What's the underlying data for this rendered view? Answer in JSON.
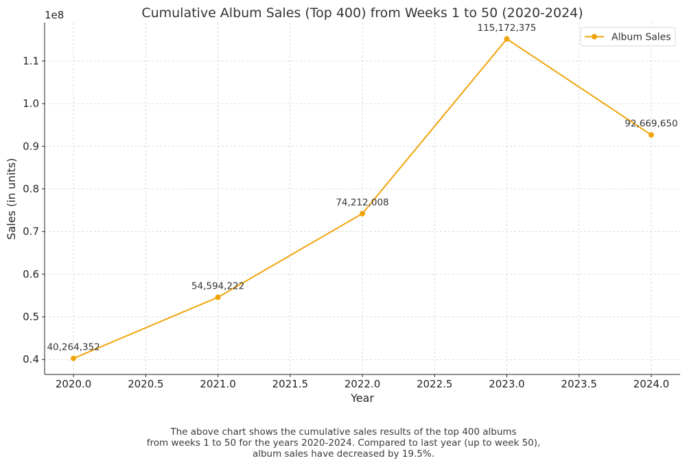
{
  "chart_data": {
    "type": "line",
    "title": "Cumulative Album Sales (Top 400) from Weeks 1 to 50 (2020-2024)",
    "xlabel": "Year",
    "ylabel": "Sales (in units)",
    "y_offset_label": "1e8",
    "x": [
      2020.0,
      2021.0,
      2022.0,
      2023.0,
      2024.0
    ],
    "series": [
      {
        "name": "Album Sales",
        "color": "#f0a30a",
        "values": [
          40264352,
          54594222,
          74212008,
          115172375,
          92669650
        ],
        "labels": [
          "40,264,352",
          "54,594,222",
          "74,212,008",
          "115,172,375",
          "92,669,650"
        ]
      }
    ],
    "xlim": [
      2019.8,
      2024.2
    ],
    "ylim": [
      36500000,
      119000000
    ],
    "x_ticks": [
      2020.0,
      2020.5,
      2021.0,
      2021.5,
      2022.0,
      2022.5,
      2023.0,
      2023.5,
      2024.0
    ],
    "x_tick_labels": [
      "2020.0",
      "2020.5",
      "2021.0",
      "2021.5",
      "2022.0",
      "2022.5",
      "2023.0",
      "2023.5",
      "2024.0"
    ],
    "y_ticks": [
      40000000,
      50000000,
      60000000,
      70000000,
      80000000,
      90000000,
      100000000,
      110000000
    ],
    "y_tick_labels": [
      "0.4",
      "0.5",
      "0.6",
      "0.7",
      "0.8",
      "0.9",
      "1.0",
      "1.1"
    ],
    "grid": true,
    "legend_position": "top-right"
  },
  "caption": {
    "lines": [
      "The above chart shows the cumulative sales results of the top 400 albums",
      "from weeks 1 to 50 for the years 2020-2024. Compared to last year (up to week 50),",
      "album sales have decreased by 19.5%."
    ]
  }
}
